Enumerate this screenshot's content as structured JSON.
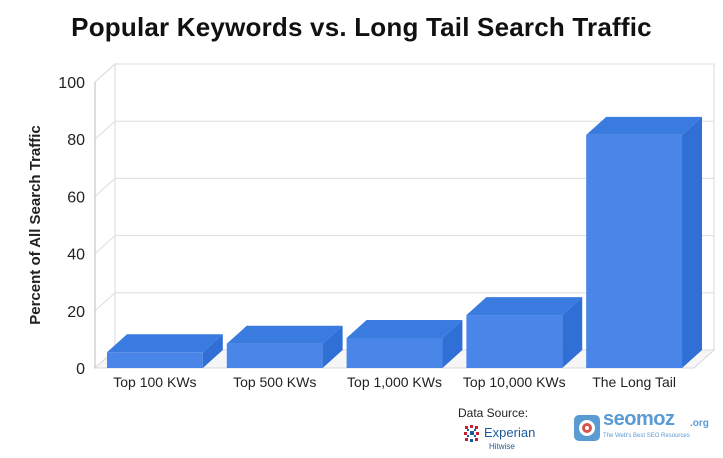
{
  "chart_data": {
    "type": "bar",
    "title": "Popular Keywords vs. Long Tail Search Traffic",
    "ylabel": "Percent of All Search Traffic",
    "xlabel": "",
    "categories": [
      "Top 100 KWs",
      "Top 500 KWs",
      "Top 1,000 KWs",
      "Top 10,000 KWs",
      "The Long Tail"
    ],
    "values": [
      5.5,
      8.5,
      10.5,
      18.5,
      81.5
    ],
    "ylim": [
      0,
      100
    ],
    "yticks": [
      0,
      20,
      40,
      60,
      80,
      100
    ],
    "grid": true,
    "style": "3d",
    "bar_color": "#4a86e8"
  },
  "footer": {
    "source_label": "Data Source:",
    "experian_name": "Experian",
    "experian_sub": "Hitwise",
    "seomoz_name": "seomoz",
    "seomoz_tld": ".org",
    "seomoz_tagline": "The Web's Best SEO Resources"
  }
}
